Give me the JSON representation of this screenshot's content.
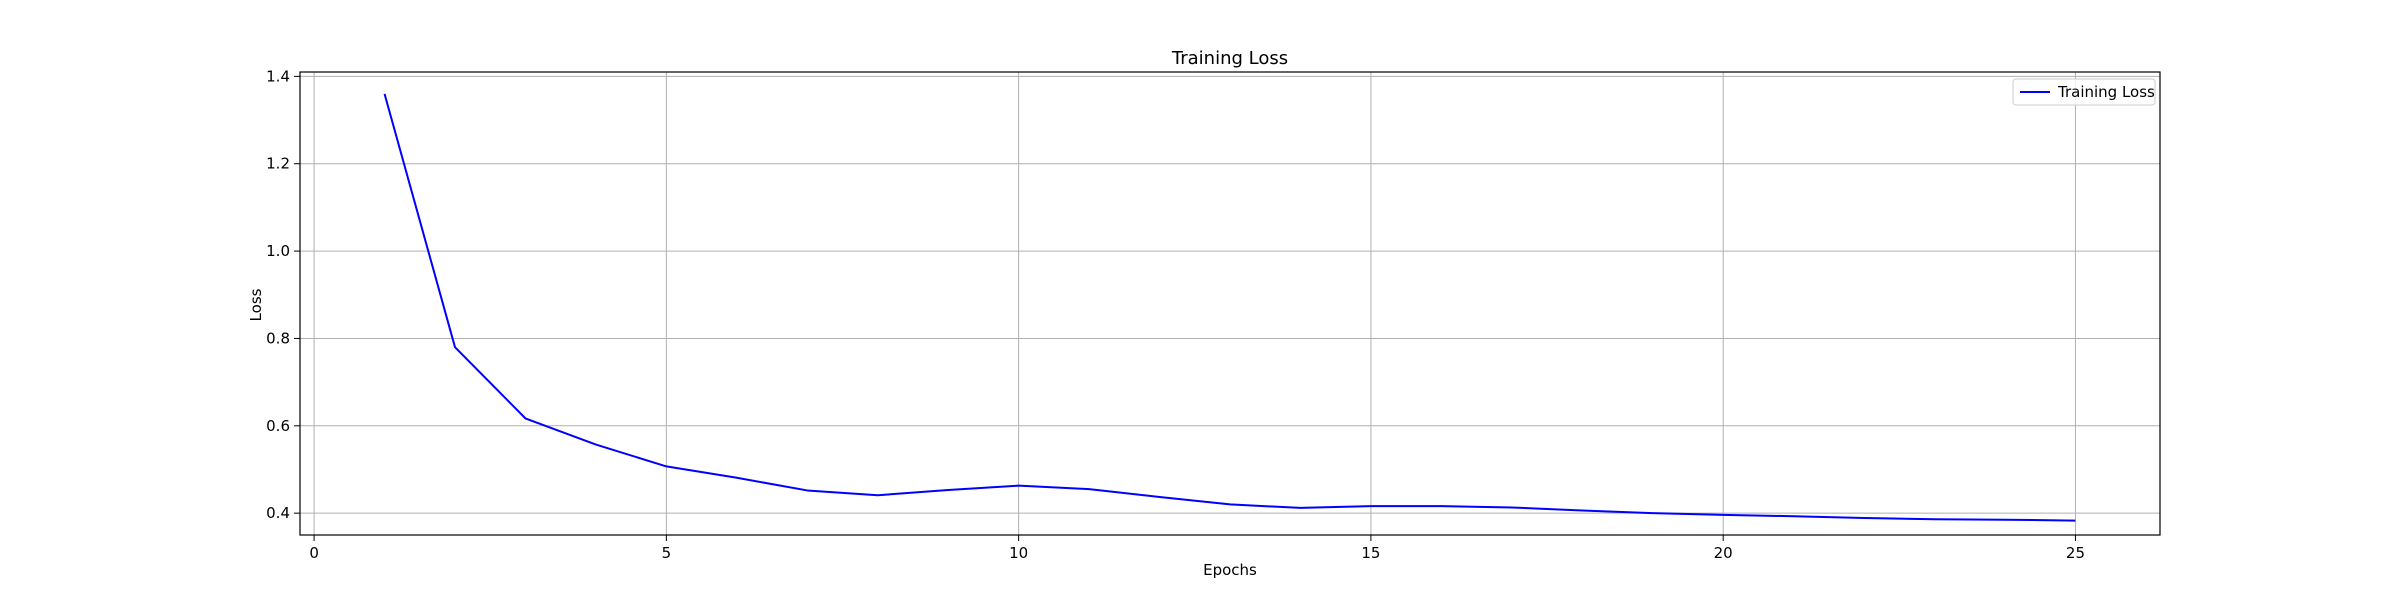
{
  "chart_data": {
    "type": "line",
    "title": "Training Loss",
    "xlabel": "Epochs",
    "ylabel": "Loss",
    "xlim": [
      -0.2,
      26.2
    ],
    "ylim": [
      0.35,
      1.41
    ],
    "xticks": [
      0,
      5,
      10,
      15,
      20,
      25
    ],
    "xtick_labels": [
      "0",
      "5",
      "10",
      "15",
      "20",
      "25"
    ],
    "yticks": [
      0.4,
      0.6,
      0.8,
      1.0,
      1.2,
      1.4
    ],
    "ytick_labels": [
      "0.4",
      "0.6",
      "0.8",
      "1.0",
      "1.2",
      "1.4"
    ],
    "grid": true,
    "legend": {
      "position": "top-right"
    },
    "series": [
      {
        "name": "Training Loss",
        "color": "#0000ff",
        "x": [
          1,
          2,
          3,
          4,
          5,
          6,
          7,
          8,
          9,
          10,
          11,
          12,
          13,
          14,
          15,
          16,
          17,
          18,
          19,
          20,
          21,
          22,
          23,
          24,
          25
        ],
        "y": [
          1.36,
          0.78,
          0.617,
          0.557,
          0.507,
          0.481,
          0.452,
          0.441,
          0.453,
          0.463,
          0.455,
          0.437,
          0.42,
          0.412,
          0.416,
          0.416,
          0.413,
          0.406,
          0.4,
          0.396,
          0.393,
          0.389,
          0.386,
          0.385,
          0.383
        ]
      }
    ]
  }
}
